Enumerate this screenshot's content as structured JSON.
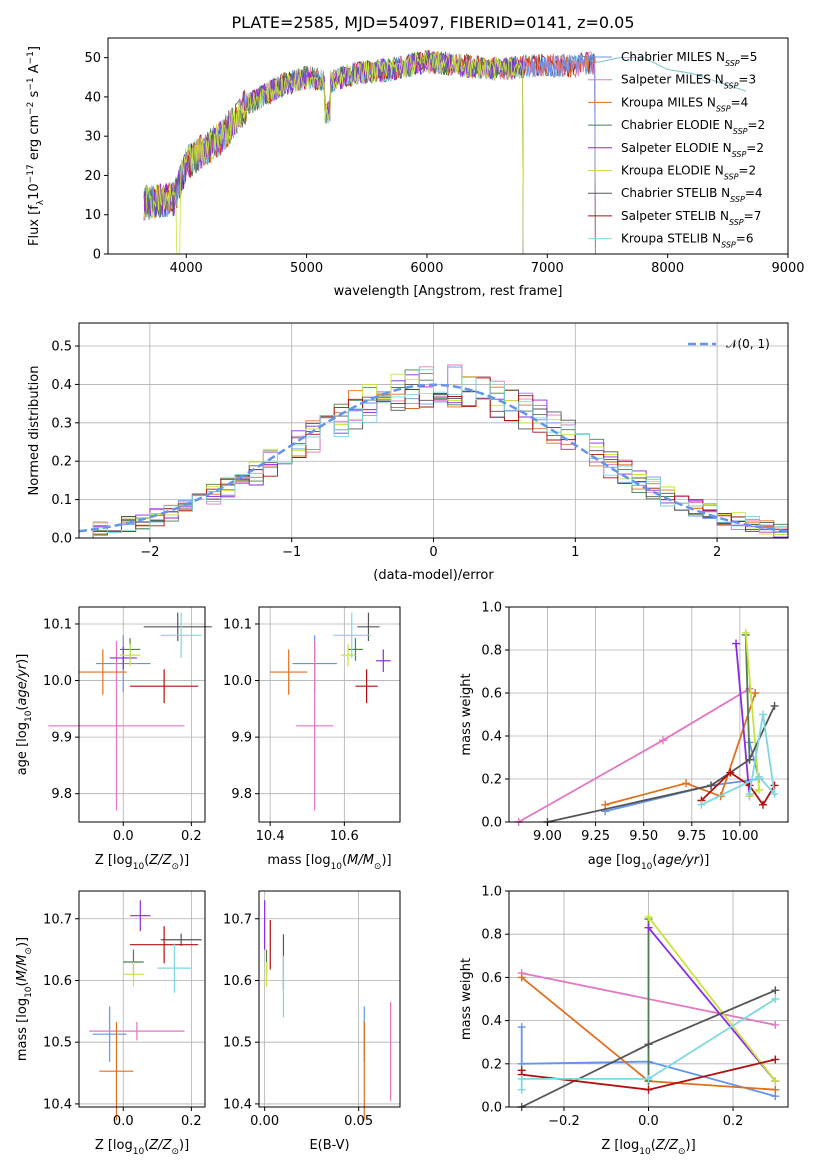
{
  "colors": {
    "ch_miles": "#6495ed",
    "sa_miles": "#e377c2",
    "kr_miles": "#e07020",
    "ch_elodie": "#4e7d4e",
    "sa_elodie": "#8a2be2",
    "kr_elodie": "#c8e43c",
    "ch_stelib": "#555555",
    "sa_stelib": "#b01010",
    "kr_stelib": "#7fd7df",
    "normal": "#6495ed"
  },
  "chart_data": [
    {
      "id": "spectrum",
      "type": "line",
      "title": "PLATE=2585, MJD=54097, FIBERID=0141, z=0.05",
      "xlabel": "wavelength [Angstrom, rest frame]",
      "ylabel": "Flux [f_λ10^-17 erg cm^-2 s^-1 A^-1]",
      "xlim": [
        3350,
        9000
      ],
      "ylim": [
        0,
        55
      ],
      "xticks": [
        "4000",
        "5000",
        "6000",
        "7000",
        "8000",
        "9000"
      ],
      "yticks": [
        "0",
        "10",
        "20",
        "30",
        "40",
        "50"
      ],
      "grid": false,
      "legend": "top-right",
      "spectrum_continuum": {
        "wavelength": [
          3650,
          3900,
          4000,
          4300,
          4500,
          4800,
          5000,
          5200,
          5400,
          5700,
          6000,
          6300,
          6600,
          6900,
          7200,
          7450,
          7600,
          7800,
          8000,
          8200,
          8400,
          8600,
          8800
        ],
        "flux": [
          13,
          14,
          23,
          30,
          38,
          43,
          45,
          44,
          46,
          47,
          49,
          48,
          47,
          48,
          48,
          49,
          50,
          50,
          47,
          46,
          44,
          42,
          40
        ]
      },
      "series": [
        {
          "name": "Chabrier MILES",
          "nssp": "5"
        },
        {
          "name": "Salpeter MILES",
          "nssp": "3"
        },
        {
          "name": "Kroupa MILES",
          "nssp": "4"
        },
        {
          "name": "Chabrier ELODIE",
          "nssp": "2"
        },
        {
          "name": "Salpeter ELODIE",
          "nssp": "2"
        },
        {
          "name": "Kroupa ELODIE",
          "nssp": "2"
        },
        {
          "name": "Chabrier STELIB",
          "nssp": "4"
        },
        {
          "name": "Salpeter STELIB",
          "nssp": "7"
        },
        {
          "name": "Kroupa STELIB",
          "nssp": "6"
        }
      ]
    },
    {
      "id": "residuals",
      "type": "histogram",
      "xlabel": "(data-model)/error",
      "ylabel": "Normed distribution",
      "xlim": [
        -2.5,
        2.5
      ],
      "ylim": [
        0,
        0.56
      ],
      "xticks": [
        "−2",
        "−1",
        "0",
        "1",
        "2"
      ],
      "yticks": [
        "0.0",
        "0.1",
        "0.2",
        "0.3",
        "0.4",
        "0.5"
      ],
      "grid": true,
      "legend_label": "𝒩(0, 1)",
      "bin_width": 0.1,
      "bin_start": -2.5,
      "reference_values": [
        0.018,
        0.022,
        0.028,
        0.035,
        0.044,
        0.054,
        0.066,
        0.079,
        0.094,
        0.111,
        0.13,
        0.15,
        0.171,
        0.194,
        0.218,
        0.242,
        0.266,
        0.29,
        0.312,
        0.333,
        0.352,
        0.368,
        0.381,
        0.391,
        0.397,
        0.399,
        0.397,
        0.391,
        0.381,
        0.368,
        0.352,
        0.333,
        0.312,
        0.29,
        0.266,
        0.242,
        0.218,
        0.194,
        0.171,
        0.15,
        0.13,
        0.111,
        0.094,
        0.079,
        0.066,
        0.054,
        0.044,
        0.035,
        0.028,
        0.022
      ]
    },
    {
      "id": "age_vs_Z",
      "type": "errorbar",
      "xlabel": "Z [log10(Z/Z⊙)]",
      "ylabel": "age  [log10(age/yr)]",
      "xlim": [
        -0.13,
        0.24
      ],
      "ylim": [
        9.75,
        10.13
      ],
      "xticks": [
        "0.0",
        "0.2"
      ],
      "yticks": [
        "9.8",
        "9.9",
        "10.0",
        "10.1"
      ],
      "grid": true,
      "points": [
        {
          "s": "ch_miles",
          "x": 0.0,
          "xerr": 0.08,
          "y": 10.03,
          "yerr": 0.05
        },
        {
          "s": "sa_miles",
          "x": -0.02,
          "xerr": 0.2,
          "y": 9.92,
          "yerr": 0.15
        },
        {
          "s": "kr_miles",
          "x": -0.06,
          "xerr": 0.07,
          "y": 10.015,
          "yerr": 0.04
        },
        {
          "s": "ch_elodie",
          "x": 0.02,
          "xerr": 0.03,
          "y": 10.055,
          "yerr": 0.02
        },
        {
          "s": "sa_elodie",
          "x": 0.0,
          "xerr": 0.04,
          "y": 10.04,
          "yerr": 0.02
        },
        {
          "s": "kr_elodie",
          "x": 0.02,
          "xerr": 0.03,
          "y": 10.045,
          "yerr": 0.02
        },
        {
          "s": "ch_stelib",
          "x": 0.16,
          "xerr": 0.1,
          "y": 10.095,
          "yerr": 0.025
        },
        {
          "s": "sa_stelib",
          "x": 0.12,
          "xerr": 0.1,
          "y": 9.99,
          "yerr": 0.03
        },
        {
          "s": "kr_stelib",
          "x": 0.17,
          "xerr": 0.06,
          "y": 10.08,
          "yerr": 0.04
        }
      ]
    },
    {
      "id": "age_vs_mass",
      "type": "errorbar",
      "xlabel": "mass [log10(M/M⊙)]",
      "ylabel": "",
      "xlim": [
        10.37,
        10.75
      ],
      "ylim": [
        9.75,
        10.13
      ],
      "xticks": [
        "10.4",
        "10.6"
      ],
      "yticks": [
        "9.8",
        "9.9",
        "10.0",
        "10.1"
      ],
      "grid": true,
      "points": [
        {
          "s": "ch_miles",
          "x": 10.52,
          "xerr": 0.06,
          "y": 10.03,
          "yerr": 0.05
        },
        {
          "s": "sa_miles",
          "x": 10.52,
          "xerr": 0.05,
          "y": 9.92,
          "yerr": 0.15
        },
        {
          "s": "kr_miles",
          "x": 10.45,
          "xerr": 0.05,
          "y": 10.015,
          "yerr": 0.04
        },
        {
          "s": "ch_elodie",
          "x": 10.63,
          "xerr": 0.02,
          "y": 10.055,
          "yerr": 0.02
        },
        {
          "s": "sa_elodie",
          "x": 10.705,
          "xerr": 0.02,
          "y": 10.035,
          "yerr": 0.02
        },
        {
          "s": "kr_elodie",
          "x": 10.61,
          "xerr": 0.02,
          "y": 10.045,
          "yerr": 0.02
        },
        {
          "s": "ch_stelib",
          "x": 10.665,
          "xerr": 0.03,
          "y": 10.095,
          "yerr": 0.025
        },
        {
          "s": "sa_stelib",
          "x": 10.66,
          "xerr": 0.03,
          "y": 9.99,
          "yerr": 0.03
        },
        {
          "s": "kr_stelib",
          "x": 10.62,
          "xerr": 0.05,
          "y": 10.08,
          "yerr": 0.04
        }
      ]
    },
    {
      "id": "weight_vs_age",
      "type": "line",
      "xlabel": "age  [log10(age/yr)]",
      "ylabel": "mass weight",
      "xlim": [
        8.8,
        10.25
      ],
      "ylim": [
        0,
        1
      ],
      "xticks": [
        "9.00",
        "9.25",
        "9.50",
        "9.75",
        "10.00"
      ],
      "yticks": [
        "0.0",
        "0.2",
        "0.4",
        "0.6",
        "0.8",
        "1.0"
      ],
      "grid": true,
      "lines": [
        {
          "s": "ch_miles",
          "x": [
            9.3,
            9.85,
            10.1,
            10.05
          ],
          "y": [
            0.05,
            0.17,
            0.2,
            0.37
          ]
        },
        {
          "s": "sa_miles",
          "x": [
            8.85,
            9.6,
            10.05
          ],
          "y": [
            0.0,
            0.38,
            0.62
          ]
        },
        {
          "s": "kr_miles",
          "x": [
            9.3,
            9.72,
            9.9,
            10.08
          ],
          "y": [
            0.08,
            0.18,
            0.12,
            0.6
          ]
        },
        {
          "s": "ch_elodie",
          "x": [
            10.05,
            10.03
          ],
          "y": [
            0.29,
            0.87
          ]
        },
        {
          "s": "sa_elodie",
          "x": [
            9.98,
            10.05
          ],
          "y": [
            0.83,
            0.12
          ]
        },
        {
          "s": "kr_elodie",
          "x": [
            10.03,
            10.1,
            10.05
          ],
          "y": [
            0.88,
            0.15,
            0.12
          ]
        },
        {
          "s": "ch_stelib",
          "x": [
            9.0,
            9.85,
            10.05,
            10.18
          ],
          "y": [
            0.0,
            0.17,
            0.29,
            0.54
          ]
        },
        {
          "s": "sa_stelib",
          "x": [
            9.8,
            9.95,
            10.05,
            10.12,
            10.18
          ],
          "y": [
            0.1,
            0.23,
            0.17,
            0.08,
            0.17
          ]
        },
        {
          "s": "kr_stelib",
          "x": [
            9.8,
            10.1,
            10.18,
            10.12,
            10.05
          ],
          "y": [
            0.08,
            0.21,
            0.13,
            0.5,
            0.13
          ]
        }
      ]
    },
    {
      "id": "mass_vs_Z",
      "type": "errorbar",
      "xlabel": "Z [log10(Z/Z⊙)]",
      "ylabel": "mass [log10(M/M⊙)]",
      "xlim": [
        -0.13,
        0.24
      ],
      "ylim": [
        10.395,
        10.745
      ],
      "xticks": [
        "0.0",
        "0.2"
      ],
      "yticks": [
        "10.4",
        "10.5",
        "10.6",
        "10.7"
      ],
      "grid": true,
      "points": [
        {
          "s": "ch_miles",
          "x": -0.04,
          "xerr": 0.05,
          "y": 10.513,
          "yerr": 0.045
        },
        {
          "s": "sa_miles",
          "x": 0.04,
          "xerr": 0.14,
          "y": 10.518,
          "yerr": 0.015
        },
        {
          "s": "kr_miles",
          "x": -0.02,
          "xerr": 0.05,
          "y": 10.453,
          "yerr": 0.08
        },
        {
          "s": "ch_elodie",
          "x": 0.03,
          "xerr": 0.03,
          "y": 10.63,
          "yerr": 0.02
        },
        {
          "s": "sa_elodie",
          "x": 0.05,
          "xerr": 0.03,
          "y": 10.705,
          "yerr": 0.025
        },
        {
          "s": "kr_elodie",
          "x": 0.03,
          "xerr": 0.03,
          "y": 10.61,
          "yerr": 0.02
        },
        {
          "s": "ch_stelib",
          "x": 0.17,
          "xerr": 0.06,
          "y": 10.666,
          "yerr": 0.01
        },
        {
          "s": "sa_stelib",
          "x": 0.12,
          "xerr": 0.1,
          "y": 10.658,
          "yerr": 0.03
        },
        {
          "s": "kr_stelib",
          "x": 0.15,
          "xerr": 0.05,
          "y": 10.62,
          "yerr": 0.04
        }
      ]
    },
    {
      "id": "mass_vs_ebv",
      "type": "errorbar",
      "xlabel": "E(B-V)",
      "ylabel": "",
      "xlim": [
        -0.003,
        0.072
      ],
      "ylim": [
        10.395,
        10.745
      ],
      "xticks": [
        "0.00",
        "0.05"
      ],
      "yticks": [
        "10.4",
        "10.5",
        "10.6",
        "10.7"
      ],
      "grid": true,
      "points": [
        {
          "s": "ch_miles",
          "x": 0.053,
          "xerr": 0.0,
          "y": 10.513,
          "yerr": 0.045
        },
        {
          "s": "sa_miles",
          "x": 0.067,
          "xerr": 0.0,
          "y": 10.485,
          "yerr": 0.08
        },
        {
          "s": "kr_miles",
          "x": 0.053,
          "xerr": 0.0,
          "y": 10.453,
          "yerr": 0.08
        },
        {
          "s": "ch_elodie",
          "x": 0.001,
          "xerr": 0.0,
          "y": 10.63,
          "yerr": 0.02
        },
        {
          "s": "sa_elodie",
          "x": 0.0,
          "xerr": 0.0,
          "y": 10.69,
          "yerr": 0.04
        },
        {
          "s": "kr_elodie",
          "x": 0.001,
          "xerr": 0.0,
          "y": 10.61,
          "yerr": 0.02
        },
        {
          "s": "ch_stelib",
          "x": 0.01,
          "xerr": 0.0,
          "y": 10.63,
          "yerr": 0.045
        },
        {
          "s": "sa_stelib",
          "x": 0.003,
          "xerr": 0.0,
          "y": 10.658,
          "yerr": 0.04
        },
        {
          "s": "kr_stelib",
          "x": 0.01,
          "xerr": 0.0,
          "y": 10.59,
          "yerr": 0.05
        }
      ]
    },
    {
      "id": "weight_vs_Z",
      "type": "line",
      "xlabel": "Z [log10(Z/Z⊙)]",
      "ylabel": "mass weight",
      "xlim": [
        -0.33,
        0.33
      ],
      "ylim": [
        0,
        1
      ],
      "xticks": [
        "−0.2",
        "0.0",
        "0.2"
      ],
      "yticks": [
        "0.0",
        "0.2",
        "0.4",
        "0.6",
        "0.8",
        "1.0"
      ],
      "grid": true,
      "lines": [
        {
          "s": "ch_miles",
          "x": [
            -0.3,
            -0.3,
            0.0,
            0.3
          ],
          "y": [
            0.37,
            0.2,
            0.21,
            0.05
          ]
        },
        {
          "s": "sa_miles",
          "x": [
            -0.3,
            0.3
          ],
          "y": [
            0.62,
            0.38
          ]
        },
        {
          "s": "kr_miles",
          "x": [
            -0.3,
            0.0,
            0.3
          ],
          "y": [
            0.6,
            0.12,
            0.08
          ]
        },
        {
          "s": "ch_elodie",
          "x": [
            0.0,
            0.0
          ],
          "y": [
            0.87,
            0.12
          ]
        },
        {
          "s": "sa_elodie",
          "x": [
            0.0,
            0.3
          ],
          "y": [
            0.83,
            0.12
          ]
        },
        {
          "s": "kr_elodie",
          "x": [
            0.0,
            0.3
          ],
          "y": [
            0.88,
            0.12
          ]
        },
        {
          "s": "ch_stelib",
          "x": [
            -0.3,
            0.0,
            0.3
          ],
          "y": [
            0.0,
            0.29,
            0.54
          ]
        },
        {
          "s": "sa_stelib",
          "x": [
            -0.3,
            -0.3,
            0.0,
            0.3
          ],
          "y": [
            0.17,
            0.15,
            0.08,
            0.22
          ]
        },
        {
          "s": "kr_stelib",
          "x": [
            -0.3,
            -0.3,
            0.0,
            0.3
          ],
          "y": [
            0.08,
            0.13,
            0.13,
            0.5
          ]
        }
      ]
    }
  ]
}
